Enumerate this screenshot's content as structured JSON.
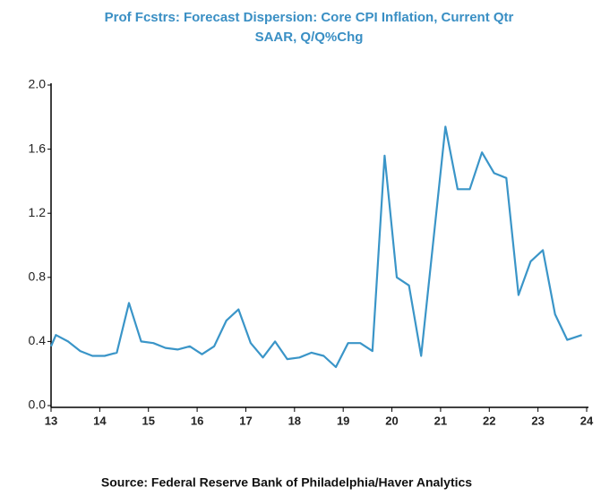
{
  "chart_data": {
    "type": "line",
    "title": "Prof Fcstrs: Forecast Dispersion: Core CPI Inflation, Current Qtr",
    "subtitle": "SAAR, Q/Q%Chg",
    "source": "Source: Federal Reserve Bank of Philadelphia/Haver Analytics",
    "x": [
      13.0,
      13.1,
      13.35,
      13.6,
      13.85,
      14.1,
      14.35,
      14.6,
      14.85,
      15.1,
      15.35,
      15.6,
      15.85,
      16.1,
      16.35,
      16.6,
      16.85,
      17.1,
      17.35,
      17.6,
      17.85,
      18.1,
      18.35,
      18.6,
      18.85,
      19.1,
      19.35,
      19.6,
      19.85,
      20.1,
      20.35,
      20.6,
      21.1,
      21.35,
      21.6,
      21.85,
      22.1,
      22.35,
      22.6,
      22.85,
      23.1,
      23.35,
      23.6,
      23.9
    ],
    "series": [
      {
        "name": "Forecast Dispersion",
        "color": "#3a95c8",
        "values": [
          0.37,
          0.44,
          0.4,
          0.34,
          0.31,
          0.31,
          0.33,
          0.64,
          0.4,
          0.39,
          0.36,
          0.35,
          0.37,
          0.32,
          0.37,
          0.53,
          0.6,
          0.39,
          0.3,
          0.4,
          0.29,
          0.3,
          0.33,
          0.31,
          0.24,
          0.39,
          0.39,
          0.34,
          1.56,
          0.8,
          0.75,
          0.31,
          1.74,
          1.35,
          1.35,
          1.58,
          1.45,
          1.42,
          0.69,
          0.9,
          0.97,
          0.57,
          0.41,
          0.44
        ]
      }
    ],
    "xlim": [
      13,
      24
    ],
    "xticks": [
      13,
      14,
      15,
      16,
      17,
      18,
      19,
      20,
      21,
      22,
      23,
      24
    ],
    "ylim": [
      0,
      2
    ],
    "yticks": [
      {
        "value": 0,
        "label": "0.0"
      },
      0.4,
      0.8,
      1.2,
      1.6,
      {
        "value": 2,
        "label": "2.0"
      }
    ],
    "grid": false
  }
}
